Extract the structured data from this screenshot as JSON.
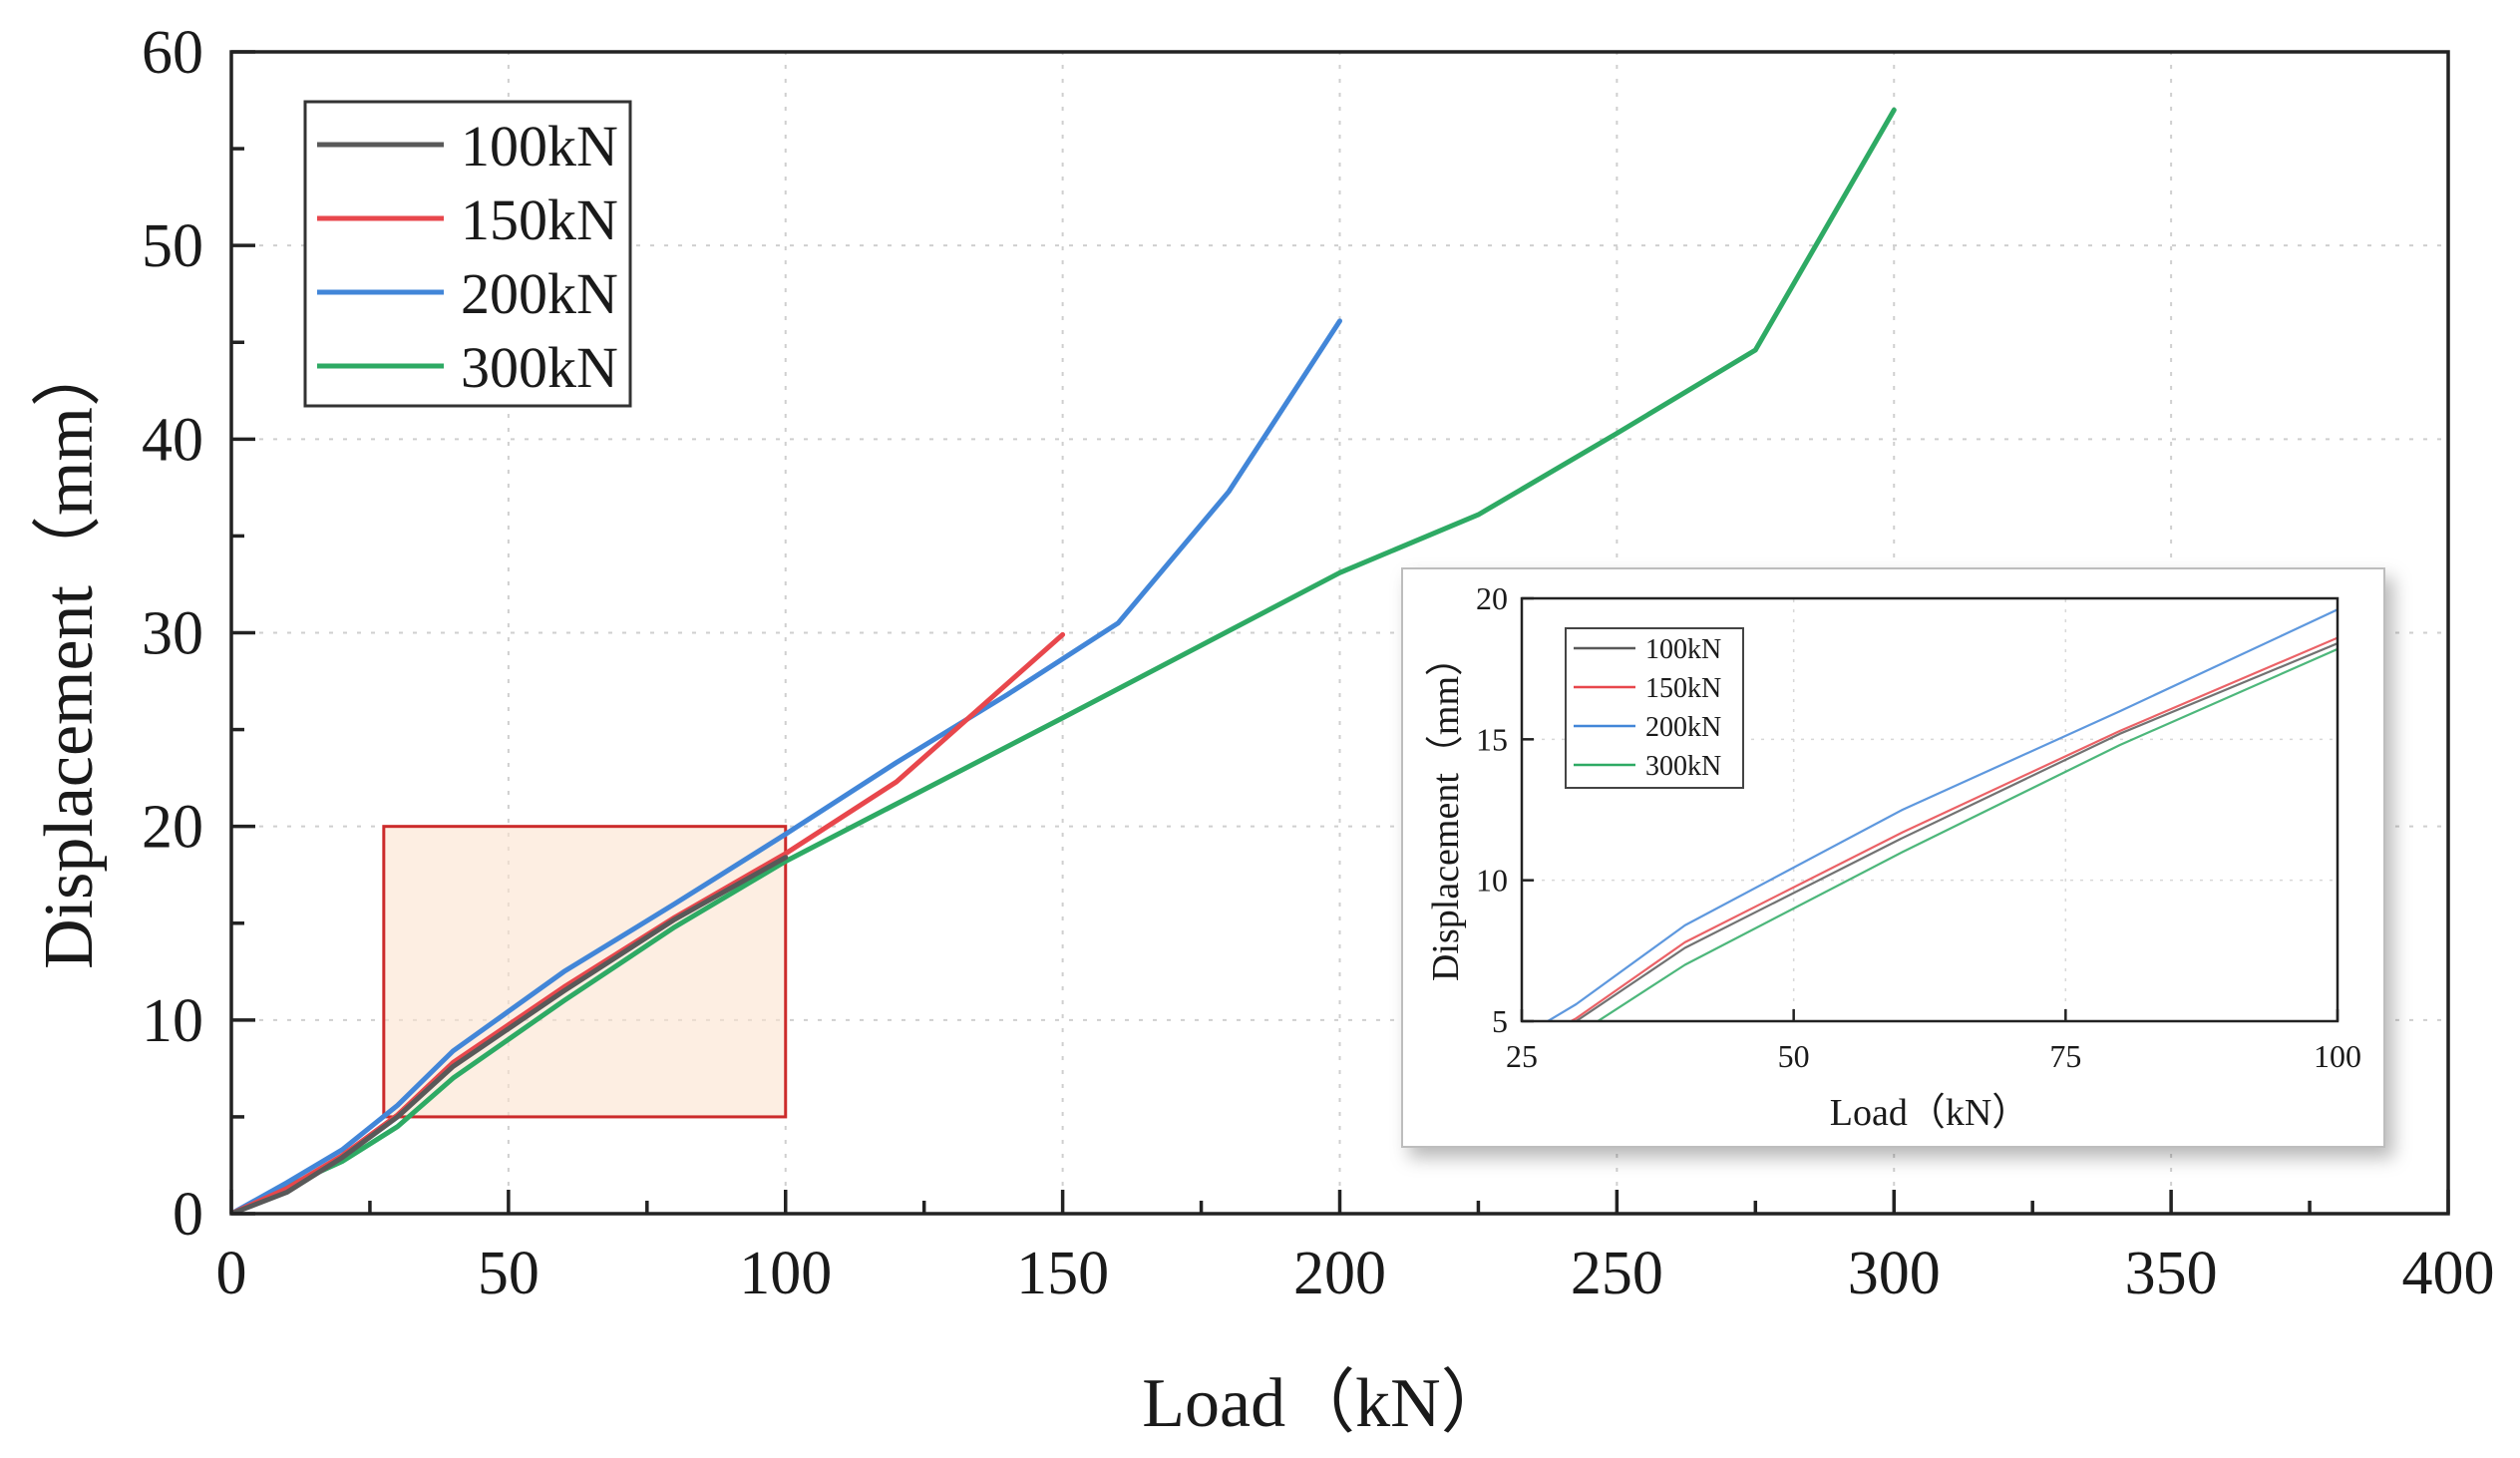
{
  "chart_data": {
    "type": "line",
    "xlabel": "Load（kN）",
    "ylabel": "Displacement（mm）",
    "xlim": [
      0,
      400
    ],
    "ylim": [
      0,
      60
    ],
    "xticks": [
      0,
      50,
      100,
      150,
      200,
      250,
      300,
      350,
      400
    ],
    "yticks": [
      0,
      10,
      20,
      30,
      40,
      50,
      60
    ],
    "grid": true,
    "legend_position": "top-left",
    "series": [
      {
        "name": "100kN",
        "color": "#595959",
        "x": [
          0,
          10,
          20,
          30,
          40,
          60,
          80,
          100
        ],
        "y": [
          0,
          1.1,
          2.9,
          5.0,
          7.6,
          11.5,
          15.2,
          18.4
        ]
      },
      {
        "name": "150kN",
        "color": "#e8474c",
        "x": [
          0,
          10,
          20,
          30,
          40,
          60,
          80,
          100,
          120,
          150
        ],
        "y": [
          0,
          1.3,
          3.0,
          5.1,
          7.8,
          11.7,
          15.3,
          18.6,
          22.3,
          29.9
        ]
      },
      {
        "name": "200kN",
        "color": "#4286d8",
        "x": [
          0,
          10,
          20,
          30,
          40,
          60,
          80,
          100,
          120,
          140,
          160,
          180,
          200
        ],
        "y": [
          0,
          1.6,
          3.3,
          5.6,
          8.4,
          12.5,
          16.0,
          19.6,
          23.3,
          26.8,
          30.5,
          37.3,
          46.1
        ]
      },
      {
        "name": "300kN",
        "color": "#2eaa64",
        "x": [
          0,
          10,
          20,
          30,
          40,
          60,
          80,
          100,
          150,
          200,
          225,
          250,
          275,
          300
        ],
        "y": [
          0,
          1.4,
          2.7,
          4.5,
          7.0,
          11.0,
          14.8,
          18.2,
          25.6,
          33.1,
          36.1,
          40.3,
          44.6,
          57.0
        ]
      }
    ],
    "zoom_box": {
      "x": [
        27.5,
        100
      ],
      "y": [
        5,
        20
      ]
    },
    "inset": {
      "xlabel": "Load（kN）",
      "ylabel": "Displacement（mm）",
      "xlim": [
        25,
        100
      ],
      "ylim": [
        5,
        20
      ],
      "xticks": [
        25,
        50,
        75,
        100
      ],
      "yticks": [
        5,
        10,
        15,
        20
      ],
      "legend": [
        "100kN",
        "150kN",
        "200kN",
        "300kN"
      ]
    }
  }
}
